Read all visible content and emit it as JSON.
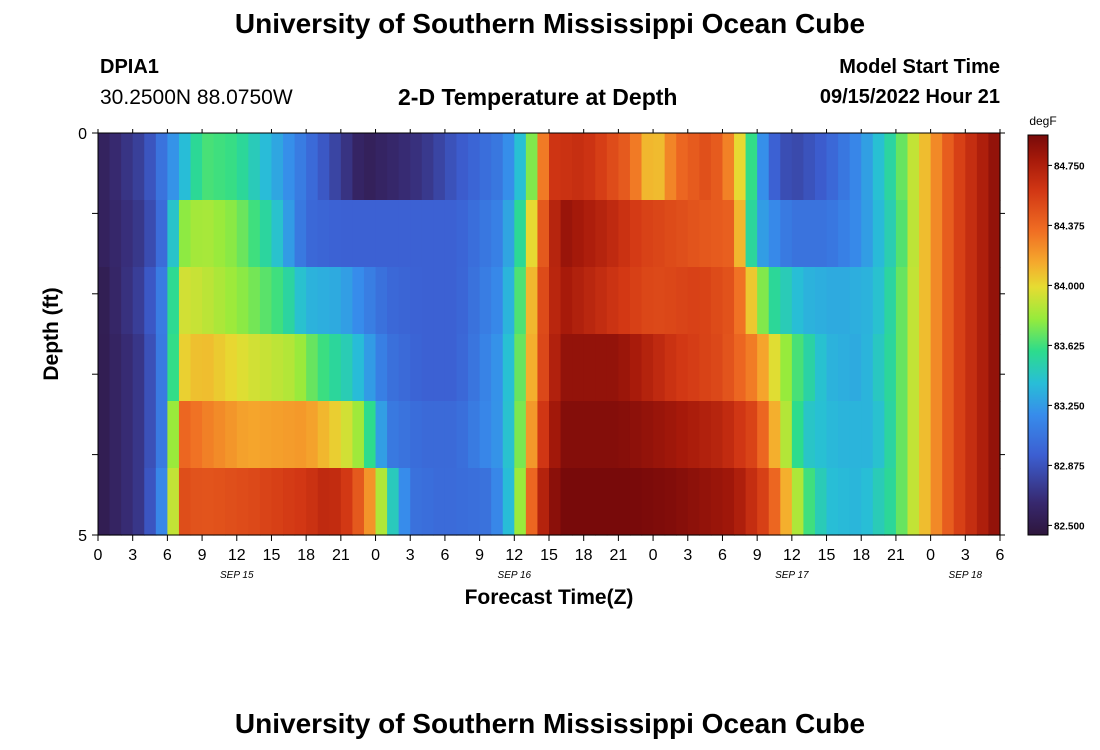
{
  "header": {
    "title": "University of Southern Mississippi Ocean Cube",
    "station_id": "DPIA1",
    "coords": "30.2500N  88.0750W",
    "plot_title": "2-D Temperature at Depth",
    "model_start_label": "Model Start Time",
    "model_start_value": "09/15/2022 Hour 21"
  },
  "footer": {
    "title": "University of Southern Mississippi Ocean Cube"
  },
  "chart_data": {
    "type": "heatmap",
    "title": "2-D Temperature at Depth",
    "xlabel": "Forecast Time(Z)",
    "ylabel": "Depth (ft)",
    "units": "degF",
    "y_tick_labels": [
      "0",
      "5"
    ],
    "ylim": [
      0,
      5
    ],
    "x_tick_labels": [
      "0",
      "3",
      "6",
      "9",
      "12",
      "15",
      "18",
      "21",
      "0",
      "3",
      "6",
      "9",
      "12",
      "15",
      "18",
      "21",
      "0",
      "3",
      "6",
      "9",
      "12",
      "15",
      "18",
      "21",
      "0",
      "3",
      "6"
    ],
    "date_labels": [
      "SEP 15",
      "SEP 16",
      "SEP 17",
      "SEP 18"
    ],
    "x_hours_start": 0,
    "x_hours_end": 78,
    "x_step_hours": 3,
    "depth_levels_ft": [
      0,
      1,
      2,
      3,
      4,
      5
    ],
    "colorbar": {
      "min": 82.44,
      "max": 84.94,
      "tick_labels": [
        "82.500",
        "82.875",
        "83.250",
        "83.625",
        "84.000",
        "84.375",
        "84.750"
      ],
      "tick_values": [
        82.5,
        82.875,
        83.25,
        83.625,
        84.0,
        84.375,
        84.75
      ]
    },
    "temperature_anchors": [
      [
        [
          0,
          82.55
        ],
        [
          4,
          82.8
        ],
        [
          7,
          83.3
        ],
        [
          9,
          83.65
        ],
        [
          12,
          83.6
        ],
        [
          16,
          83.25
        ],
        [
          20,
          82.85
        ],
        [
          23,
          82.55
        ],
        [
          28,
          82.7
        ],
        [
          31,
          82.9
        ],
        [
          35,
          83.1
        ],
        [
          37,
          83.5
        ],
        [
          38,
          84.0
        ],
        [
          39,
          84.6
        ],
        [
          42,
          84.65
        ],
        [
          46,
          84.4
        ],
        [
          48,
          84.0
        ],
        [
          50,
          84.35
        ],
        [
          53,
          84.5
        ],
        [
          55,
          84.2
        ],
        [
          56,
          83.8
        ],
        [
          58,
          83.0
        ],
        [
          60,
          82.8
        ],
        [
          63,
          82.95
        ],
        [
          66,
          83.2
        ],
        [
          69,
          83.6
        ],
        [
          71,
          84.0
        ],
        [
          74,
          84.5
        ],
        [
          78,
          84.9
        ]
      ],
      [
        [
          0,
          82.55
        ],
        [
          4,
          82.75
        ],
        [
          6,
          83.1
        ],
        [
          7,
          83.75
        ],
        [
          9,
          83.85
        ],
        [
          12,
          83.75
        ],
        [
          15,
          83.5
        ],
        [
          18,
          83.0
        ],
        [
          21,
          82.95
        ],
        [
          27,
          82.95
        ],
        [
          31,
          82.95
        ],
        [
          35,
          83.15
        ],
        [
          37,
          83.7
        ],
        [
          38,
          84.3
        ],
        [
          40,
          84.85
        ],
        [
          44,
          84.7
        ],
        [
          47,
          84.55
        ],
        [
          52,
          84.45
        ],
        [
          55,
          84.4
        ],
        [
          56,
          83.8
        ],
        [
          57,
          83.3
        ],
        [
          60,
          83.05
        ],
        [
          63,
          83.05
        ],
        [
          66,
          83.2
        ],
        [
          69,
          83.55
        ],
        [
          71,
          84.0
        ],
        [
          74,
          84.5
        ],
        [
          78,
          84.9
        ]
      ],
      [
        [
          0,
          82.5
        ],
        [
          4,
          82.8
        ],
        [
          6,
          83.2
        ],
        [
          7,
          83.95
        ],
        [
          9,
          83.9
        ],
        [
          13,
          83.75
        ],
        [
          16,
          83.6
        ],
        [
          18,
          83.35
        ],
        [
          21,
          83.3
        ],
        [
          25,
          83.0
        ],
        [
          28,
          82.95
        ],
        [
          31,
          82.95
        ],
        [
          35,
          83.2
        ],
        [
          37,
          83.8
        ],
        [
          38,
          84.4
        ],
        [
          40,
          84.8
        ],
        [
          45,
          84.6
        ],
        [
          48,
          84.5
        ],
        [
          52,
          84.55
        ],
        [
          55,
          84.45
        ],
        [
          56,
          84.2
        ],
        [
          58,
          83.6
        ],
        [
          61,
          83.35
        ],
        [
          64,
          83.3
        ],
        [
          67,
          83.35
        ],
        [
          69,
          83.6
        ],
        [
          71,
          84.0
        ],
        [
          74,
          84.5
        ],
        [
          78,
          84.9
        ]
      ],
      [
        [
          0,
          82.5
        ],
        [
          4,
          82.75
        ],
        [
          6,
          83.2
        ],
        [
          7,
          84.0
        ],
        [
          9,
          84.1
        ],
        [
          13,
          83.95
        ],
        [
          17,
          83.85
        ],
        [
          19,
          83.65
        ],
        [
          22,
          83.45
        ],
        [
          25,
          83.05
        ],
        [
          28,
          82.95
        ],
        [
          31,
          82.95
        ],
        [
          35,
          83.25
        ],
        [
          37,
          83.85
        ],
        [
          38,
          84.4
        ],
        [
          40,
          84.85
        ],
        [
          45,
          84.85
        ],
        [
          50,
          84.6
        ],
        [
          54,
          84.5
        ],
        [
          57,
          84.25
        ],
        [
          60,
          83.7
        ],
        [
          63,
          83.35
        ],
        [
          66,
          83.3
        ],
        [
          69,
          83.6
        ],
        [
          71,
          84.0
        ],
        [
          74,
          84.5
        ],
        [
          78,
          84.9
        ]
      ],
      [
        [
          0,
          82.5
        ],
        [
          4,
          82.75
        ],
        [
          6,
          83.2
        ],
        [
          7,
          84.4
        ],
        [
          9,
          84.3
        ],
        [
          13,
          84.15
        ],
        [
          18,
          84.2
        ],
        [
          21,
          84.0
        ],
        [
          23,
          83.75
        ],
        [
          25,
          83.1
        ],
        [
          28,
          83.0
        ],
        [
          31,
          83.0
        ],
        [
          35,
          83.25
        ],
        [
          37,
          83.9
        ],
        [
          38,
          84.5
        ],
        [
          40,
          84.9
        ],
        [
          45,
          84.9
        ],
        [
          50,
          84.8
        ],
        [
          54,
          84.7
        ],
        [
          57,
          84.5
        ],
        [
          59,
          84.0
        ],
        [
          61,
          83.45
        ],
        [
          64,
          83.35
        ],
        [
          67,
          83.35
        ],
        [
          69,
          83.6
        ],
        [
          71,
          84.0
        ],
        [
          74,
          84.5
        ],
        [
          78,
          84.9
        ]
      ],
      [
        [
          0,
          82.5
        ],
        [
          4,
          82.75
        ],
        [
          6,
          83.3
        ],
        [
          7,
          84.5
        ],
        [
          9,
          84.45
        ],
        [
          13,
          84.5
        ],
        [
          18,
          84.6
        ],
        [
          20,
          84.7
        ],
        [
          22,
          84.55
        ],
        [
          24,
          84.1
        ],
        [
          25,
          83.6
        ],
        [
          27,
          83.05
        ],
        [
          30,
          83.0
        ],
        [
          34,
          83.05
        ],
        [
          36,
          83.5
        ],
        [
          37,
          84.1
        ],
        [
          38,
          84.65
        ],
        [
          40,
          84.95
        ],
        [
          45,
          84.95
        ],
        [
          50,
          84.9
        ],
        [
          55,
          84.8
        ],
        [
          58,
          84.5
        ],
        [
          60,
          84.0
        ],
        [
          61,
          83.7
        ],
        [
          63,
          83.4
        ],
        [
          66,
          83.35
        ],
        [
          69,
          83.6
        ],
        [
          71,
          84.0
        ],
        [
          74,
          84.5
        ],
        [
          78,
          84.9
        ]
      ]
    ]
  }
}
